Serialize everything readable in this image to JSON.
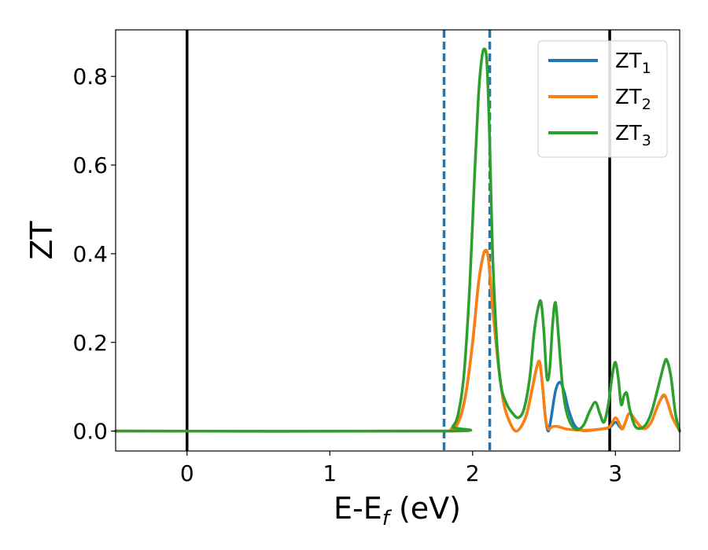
{
  "chart_data": {
    "type": "line",
    "title": "",
    "xlabel": "E-E",
    "xlabel_sub": "f",
    "xlabel_unit": " (eV)",
    "ylabel": "ZT",
    "xlim": [
      -0.5,
      3.45
    ],
    "ylim": [
      -0.045,
      0.905
    ],
    "grid": false,
    "legend_position": "top-right",
    "x_ticks": [
      0,
      1,
      2,
      3
    ],
    "x_tick_labels": [
      "0",
      "1",
      "2",
      "3"
    ],
    "y_ticks": [
      0.0,
      0.2,
      0.4,
      0.6,
      0.8
    ],
    "y_tick_labels": [
      "0.0",
      "0.2",
      "0.4",
      "0.6",
      "0.8"
    ],
    "vertical_lines": [
      {
        "x": 0.0,
        "color": "#000000",
        "style": "solid"
      },
      {
        "x": 1.8,
        "color": "#1f77b4",
        "style": "dashed"
      },
      {
        "x": 2.12,
        "color": "#1f77b4",
        "style": "dashed"
      },
      {
        "x": 2.96,
        "color": "#000000",
        "style": "solid"
      }
    ],
    "series": [
      {
        "name": "ZT",
        "name_sub": "1",
        "color": "#1f77b4",
        "x": [
          -0.5,
          1.78,
          1.85,
          1.9,
          1.95,
          2.0,
          2.04,
          2.07,
          2.09,
          2.11,
          2.14,
          2.18,
          2.22,
          2.26,
          2.3,
          2.34,
          2.38,
          2.42,
          2.45,
          2.47,
          2.49,
          2.51,
          2.53,
          2.55,
          2.58,
          2.61,
          2.64,
          2.67,
          2.71,
          2.75,
          2.8,
          2.86,
          2.91,
          2.96,
          3.0,
          3.03,
          3.05,
          3.07,
          3.1,
          3.15,
          3.2,
          3.25,
          3.3,
          3.34,
          3.37,
          3.4,
          3.45
        ],
        "values": [
          0,
          0,
          0.005,
          0.02,
          0.08,
          0.2,
          0.33,
          0.39,
          0.405,
          0.39,
          0.28,
          0.15,
          0.06,
          0.02,
          0.0,
          0.01,
          0.04,
          0.1,
          0.145,
          0.155,
          0.1,
          0.03,
          0.0,
          0.03,
          0.09,
          0.11,
          0.09,
          0.05,
          0.015,
          0.003,
          0.001,
          0.003,
          0.005,
          0.008,
          0.02,
          0.01,
          0.005,
          0.02,
          0.04,
          0.02,
          0.005,
          0.02,
          0.06,
          0.08,
          0.06,
          0.03,
          0.0
        ]
      },
      {
        "name": "ZT",
        "name_sub": "2",
        "color": "#ff7f0e",
        "x": [
          -0.5,
          1.78,
          1.85,
          1.9,
          1.95,
          2.0,
          2.04,
          2.07,
          2.09,
          2.11,
          2.14,
          2.18,
          2.22,
          2.26,
          2.3,
          2.34,
          2.38,
          2.42,
          2.45,
          2.47,
          2.49,
          2.51,
          2.53,
          2.56,
          2.6,
          2.65,
          2.7,
          2.75,
          2.8,
          2.86,
          2.91,
          2.96,
          3.0,
          3.03,
          3.05,
          3.07,
          3.1,
          3.15,
          3.2,
          3.25,
          3.3,
          3.34,
          3.37,
          3.4,
          3.45
        ],
        "values": [
          0,
          0,
          0.005,
          0.02,
          0.08,
          0.2,
          0.33,
          0.39,
          0.408,
          0.39,
          0.28,
          0.15,
          0.06,
          0.02,
          0.0,
          0.01,
          0.04,
          0.1,
          0.145,
          0.155,
          0.1,
          0.03,
          0.005,
          0.01,
          0.01,
          0.005,
          0.003,
          0.002,
          0.002,
          0.003,
          0.005,
          0.01,
          0.03,
          0.015,
          0.005,
          0.02,
          0.04,
          0.02,
          0.005,
          0.02,
          0.06,
          0.082,
          0.06,
          0.03,
          0.0
        ]
      },
      {
        "name": "ZT",
        "name_sub": "3",
        "color": "#2ca02c",
        "x": [
          -0.5,
          1.8,
          1.86,
          1.9,
          1.94,
          1.98,
          2.01,
          2.04,
          2.06,
          2.08,
          2.1,
          2.12,
          2.14,
          2.17,
          2.2,
          2.24,
          2.28,
          2.32,
          2.36,
          2.4,
          2.43,
          2.46,
          2.48,
          2.5,
          2.52,
          2.54,
          2.56,
          2.58,
          2.6,
          2.63,
          2.66,
          2.7,
          2.74,
          2.78,
          2.82,
          2.86,
          2.89,
          2.92,
          2.95,
          2.98,
          3.0,
          3.02,
          3.04,
          3.06,
          3.08,
          3.1,
          3.14,
          3.2,
          3.25,
          3.3,
          3.34,
          3.36,
          3.39,
          3.42,
          3.45
        ],
        "values": [
          0,
          0,
          0.01,
          0.04,
          0.13,
          0.33,
          0.55,
          0.75,
          0.83,
          0.862,
          0.83,
          0.65,
          0.4,
          0.2,
          0.1,
          0.06,
          0.04,
          0.03,
          0.05,
          0.12,
          0.22,
          0.28,
          0.29,
          0.22,
          0.12,
          0.14,
          0.24,
          0.29,
          0.22,
          0.1,
          0.04,
          0.01,
          0.004,
          0.015,
          0.045,
          0.065,
          0.04,
          0.02,
          0.06,
          0.13,
          0.155,
          0.12,
          0.06,
          0.08,
          0.085,
          0.05,
          0.01,
          0.01,
          0.04,
          0.1,
          0.15,
          0.16,
          0.12,
          0.04,
          0.0
        ]
      }
    ]
  }
}
